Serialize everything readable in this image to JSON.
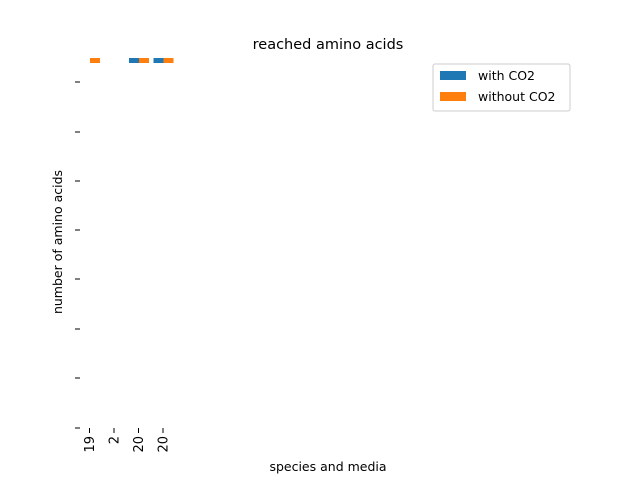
{
  "chart_data": {
    "type": "bar",
    "title": "reached amino acids",
    "xlabel": "species and media",
    "ylabel": "number of amino acids",
    "categories": [
      "19",
      "2",
      "20",
      "20"
    ],
    "series": [
      {
        "name": "with CO2",
        "color": "#1f77b4",
        "values": [
          0,
          0,
          1,
          1
        ]
      },
      {
        "name": "without CO2",
        "color": "#ff7f0e",
        "values": [
          1,
          0,
          1,
          1
        ]
      }
    ],
    "ylim": [
      0,
      74
    ],
    "legend_position": "top-right",
    "grid": false
  }
}
